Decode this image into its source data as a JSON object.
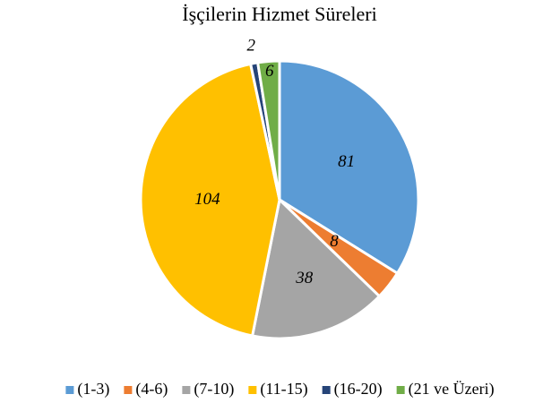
{
  "chart_data": {
    "type": "pie",
    "title": "İşçilerin Hizmet Süreleri",
    "categories": [
      "(1-3)",
      "(4-6)",
      "(7-10)",
      "(11-15)",
      "(16-20)",
      "(21 ve Üzeri)"
    ],
    "values": [
      81,
      8,
      38,
      104,
      2,
      6
    ],
    "colors": [
      "#5b9bd5",
      "#ed7d31",
      "#a5a5a5",
      "#ffc000",
      "#264478",
      "#70ad47"
    ],
    "legend": "bottom"
  }
}
